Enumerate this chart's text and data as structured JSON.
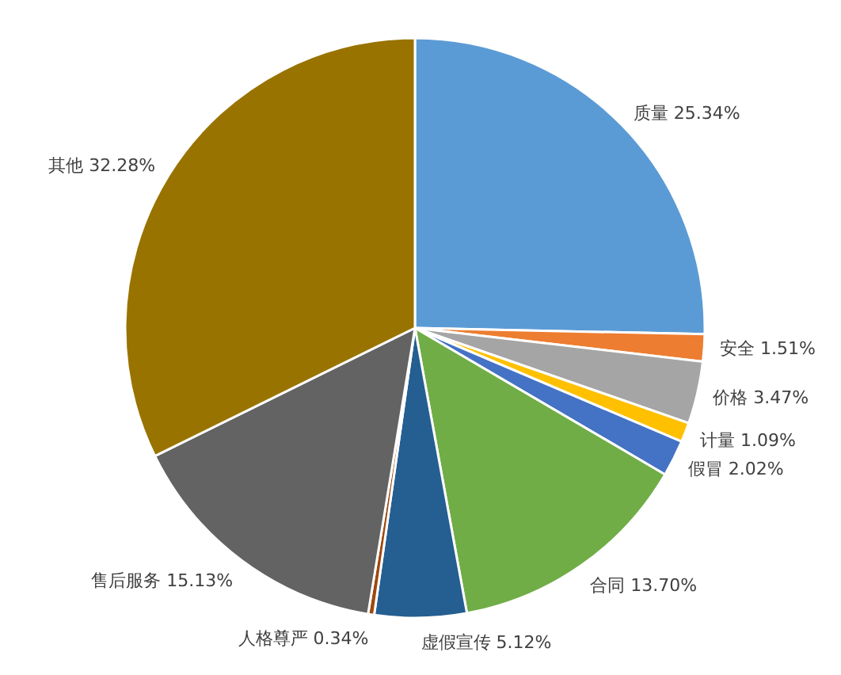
{
  "chart_data": {
    "type": "pie",
    "categories": [
      "质量",
      "安全",
      "价格",
      "计量",
      "假冒",
      "合同",
      "虚假宣传",
      "人格尊严",
      "售后服务",
      "其他"
    ],
    "values": [
      25.34,
      1.51,
      3.47,
      1.09,
      2.02,
      13.7,
      5.12,
      0.34,
      15.13,
      32.28
    ],
    "value_labels": [
      "25.34%",
      "1.51%",
      "3.47%",
      "1.09%",
      "2.02%",
      "13.70%",
      "5.12%",
      "0.34%",
      "15.13%",
      "32.28%"
    ],
    "colors": [
      "#5b9bd5",
      "#ed7d31",
      "#a5a5a5",
      "#ffc000",
      "#4472c4",
      "#70ad47",
      "#255e91",
      "#9e480e",
      "#636363",
      "#997300"
    ]
  }
}
